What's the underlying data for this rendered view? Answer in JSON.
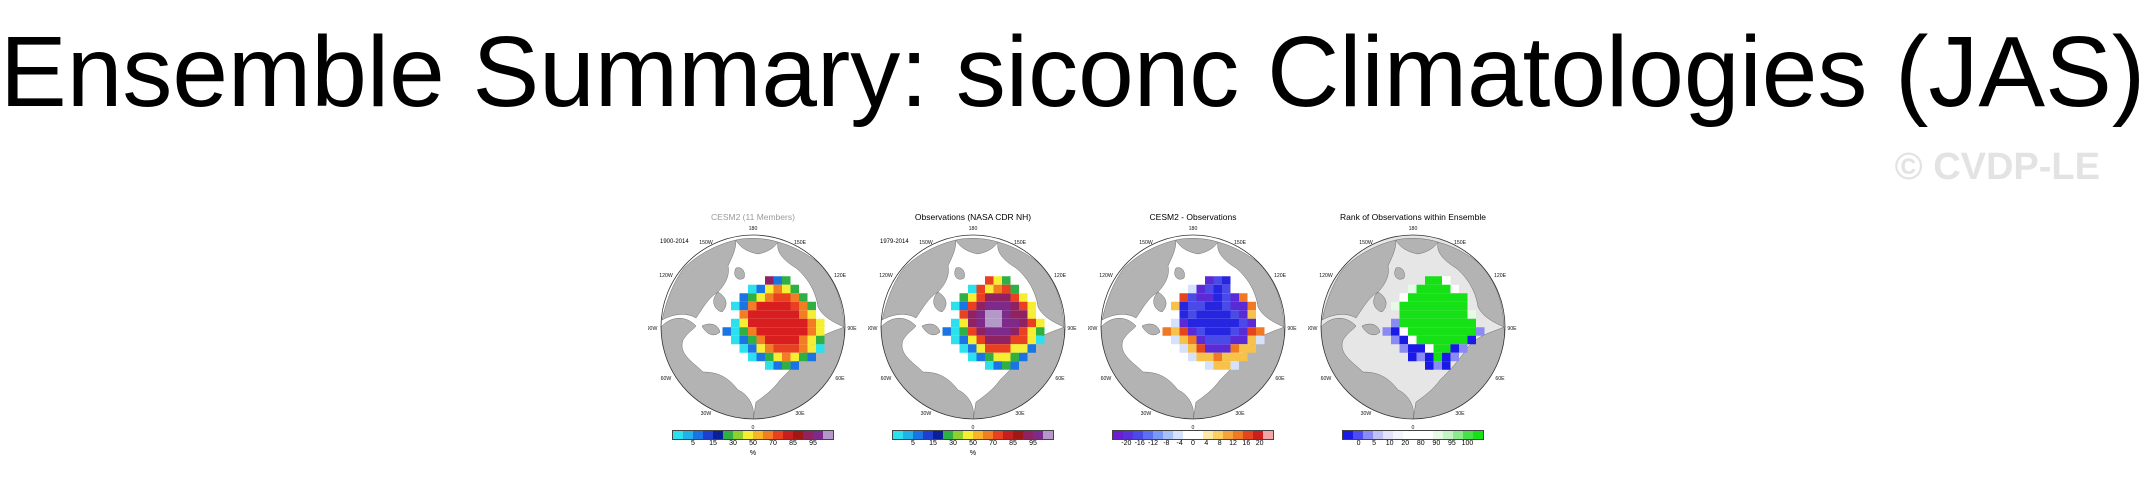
{
  "title": "Ensemble Summary: siconc Climatologies (JAS)",
  "watermark": "© CVDP-LE",
  "map_labels": {
    "lon_180": "180",
    "lon_150w": "150W",
    "lon_150e": "150E",
    "lon_120w": "120W",
    "lon_120e": "120E",
    "lon_90w": "90W",
    "lon_90e": "90E",
    "lon_60w": "60W",
    "lon_60e": "60E",
    "lon_30w": "30W",
    "lon_30e": "30E",
    "lon_0": "0"
  },
  "colors": {
    "land": "#b3b3b3",
    "ocean": "#ffffff",
    "rank_ocean": "#e6e6e6",
    "coast": "#555555"
  },
  "panels": [
    {
      "title": "CESM2 (11 Members)",
      "title_style": "grey",
      "period": "1900-2014",
      "units": "%",
      "scale": "conc",
      "ocean": "white",
      "colorbar": [
        "#2ce0ee",
        "#22b2ea",
        "#1a74e3",
        "#1e3fd0",
        "#0a1e96",
        "#2fb044",
        "#90d02e",
        "#f6ee32",
        "#f9b52a",
        "#f27d22",
        "#e84020",
        "#c81e1e",
        "#9e1818",
        "#902262",
        "#7e2a8a",
        "#b498c8"
      ],
      "ticks": [
        "5",
        "15",
        "30",
        "50",
        "70",
        "85",
        "95"
      ],
      "field": [
        "................",
        "........mbg.....",
        "......cbyoyg....",
        ".....bgyorrog...",
        "....cboRRRRrog..",
        ".....oRRRRRRoy..",
        "....cyRRRRRRRoy.",
        "...bcgoRRRRRRoy.",
        "....cbgoRRRRoyg.",
        ".....cbyorrroyc.",
        "......cbgyoygb..",
        "........cbgb....",
        "................"
      ]
    },
    {
      "title": "Observations (NASA CDR NH)",
      "title_style": "black",
      "period": "1979-2014",
      "units": "%",
      "scale": "conc",
      "ocean": "white",
      "colorbar": [
        "#2ce0ee",
        "#22b2ea",
        "#1a74e3",
        "#1e3fd0",
        "#0a1e96",
        "#2fb044",
        "#90d02e",
        "#f6ee32",
        "#f9b52a",
        "#f27d22",
        "#e84020",
        "#c81e1e",
        "#9e1818",
        "#902262",
        "#7e2a8a",
        "#b498c8"
      ],
      "ticks": [
        "5",
        "15",
        "30",
        "50",
        "70",
        "85",
        "95"
      ],
      "field": [
        "................",
        "........ryg.....",
        "......cryorg....",
        ".....gyrmmmry...",
        "....cbrmpppmry..",
        ".....rmpllpmmy..",
        "....cympllppmry.",
        "...bcgrmpppmryg.",
        "....cbyrmmmrryc.",
        ".....cbyrrryyb..",
        "......cbgyygb...",
        "........cbgb....",
        "................"
      ]
    },
    {
      "title": "CESM2 - Observations",
      "title_style": "black",
      "period": "",
      "units": "",
      "scale": "diff",
      "ocean": "white",
      "colorbar": [
        "#6a1ed0",
        "#5830dc",
        "#4a4ae8",
        "#5a70f0",
        "#7a98f6",
        "#a6c0fa",
        "#d6e2fc",
        "#ffffff",
        "#ffffff",
        "#fde8a8",
        "#fcd060",
        "#f7a33c",
        "#f07a24",
        "#e5451e",
        "#cc1e1e",
        "#f3a5a5"
      ],
      "ticks": [
        "-20",
        "-16",
        "-12",
        "-8",
        "-4",
        "0",
        "4",
        "8",
        "12",
        "16",
        "20"
      ],
      "field": [
        "................",
        "........PVB.....",
        "......cPVBVw....",
        ".....rVPPBVPo...",
        "....yBVVBBVPPo..",
        ".....BVBBBBVPy..",
        "....cPBBBBBBVPw.",
        "...oyrPVBBBVPro.",
        "....cyoPVVVPPyc.",
        ".....cyrPPPoyy..",
        "......cyyoyyy...",
        "........cyyc....",
        "................"
      ]
    },
    {
      "title": "Rank of Observations within Ensemble",
      "title_style": "black",
      "period": "",
      "units": "",
      "scale": "rank",
      "ocean": "grey",
      "colorbar": [
        "#1a1ae6",
        "#4c4cf0",
        "#8a8af4",
        "#c0c0f8",
        "#e2e2fa",
        "#f4f4fd",
        "#ffffff",
        "#ffffff",
        "#ffffff",
        "#e6fae6",
        "#c4f4c4",
        "#8ceb8c",
        "#48e048",
        "#16e016"
      ],
      "ticks": [
        "0",
        "5",
        "10",
        "20",
        "80",
        "90",
        "95",
        "100"
      ],
      "field": [
        "................",
        "........GGW.....",
        "......wGGGGW....",
        ".....WGGGGGGG...",
        "....wGGGGGGGG...",
        ".....GGGGGGGGw..",
        "....uGGGGGGGGG..",
        "...uBWGGGGGGGGu.",
        "....uBWGGGGGGB..",
        ".....uBBWGGBu...",
        "......BuBGBu....",
        "........BuB.....",
        "................"
      ]
    }
  ]
}
